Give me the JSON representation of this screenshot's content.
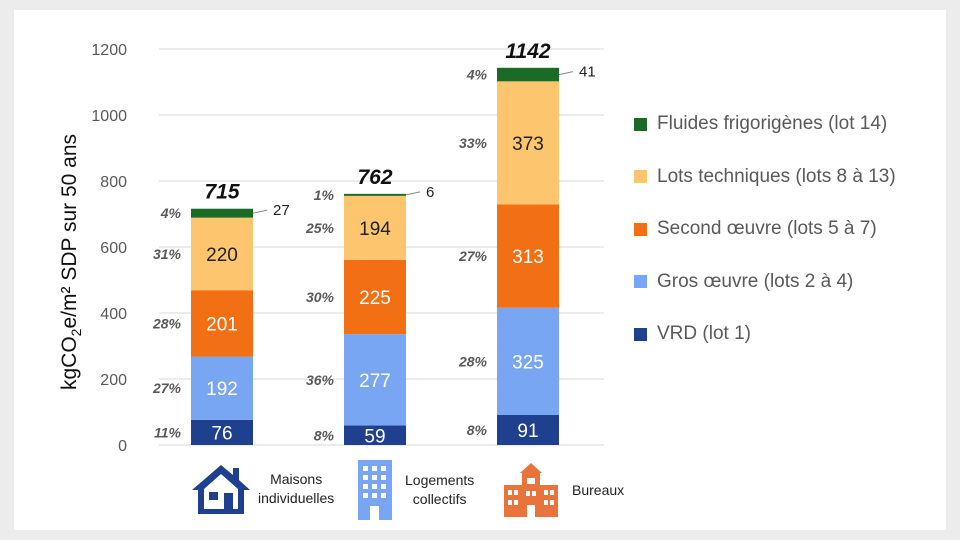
{
  "chart_data": {
    "type": "bar",
    "stacked": true,
    "ylabel": "kgCO2e/m² SDP sur 50 ans",
    "ylim": [
      0,
      1200
    ],
    "yticks": [
      0,
      200,
      400,
      600,
      800,
      1000,
      1200
    ],
    "grid": true,
    "legend_position": "right",
    "categories": [
      "Maisons individuelles",
      "Logements collectifs",
      "Bureaux"
    ],
    "totals": [
      "715",
      "762",
      "1142"
    ],
    "series": [
      {
        "name": "VRD (lot 1)",
        "color": "#1f3f8f",
        "values": [
          76,
          59,
          91
        ],
        "percents": [
          "11%",
          "8%",
          "8%"
        ]
      },
      {
        "name": "Gros œuvre (lots 2 à 4)",
        "color": "#79a6f2",
        "values": [
          192,
          277,
          325
        ],
        "percents": [
          "27%",
          "36%",
          "28%"
        ]
      },
      {
        "name": "Second œuvre (lots 5 à 7)",
        "color": "#f26f13",
        "values": [
          201,
          225,
          313
        ],
        "percents": [
          "28%",
          "30%",
          "27%"
        ]
      },
      {
        "name": "Lots techniques (lots 8 à 13)",
        "color": "#fdc66e",
        "values": [
          220,
          194,
          373
        ],
        "percents": [
          "31%",
          "25%",
          "33%"
        ]
      },
      {
        "name": "Fluides frigorigènes (lot 14)",
        "color": "#1a6b25",
        "values": [
          27,
          6,
          41
        ],
        "percents": [
          "4%",
          "1%",
          "4%"
        ]
      }
    ]
  },
  "category_icons": [
    "house-icon",
    "apartment-building-icon",
    "office-building-icon"
  ],
  "icon_colors": [
    "#1f3f8f",
    "#79a6f2",
    "#e8743b"
  ]
}
